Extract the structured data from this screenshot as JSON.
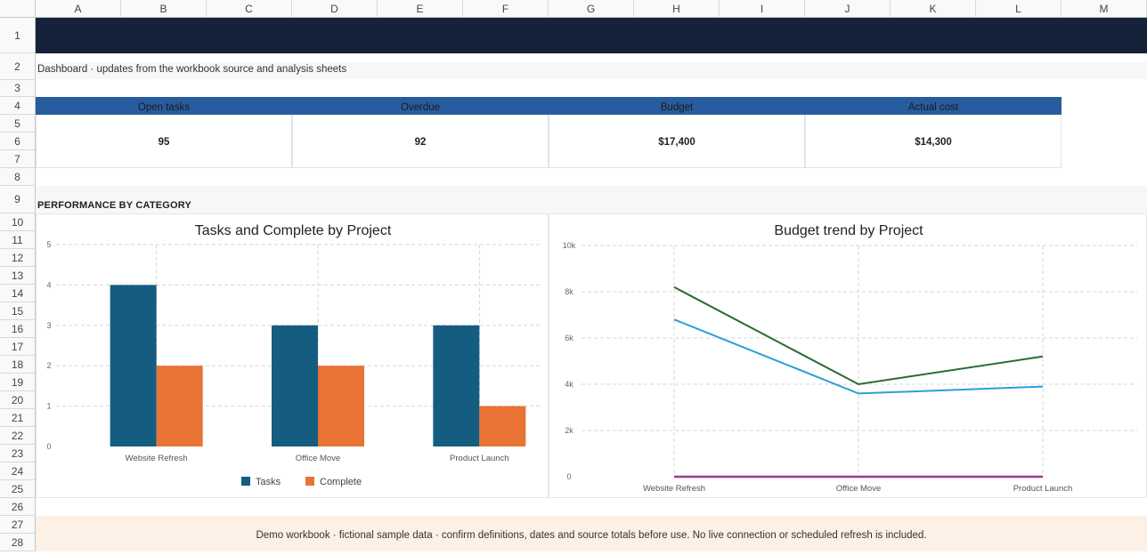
{
  "columns": [
    "A",
    "B",
    "C",
    "D",
    "E",
    "F",
    "G",
    "H",
    "I",
    "J",
    "K",
    "L",
    "M"
  ],
  "rows": [
    "1",
    "2",
    "3",
    "4",
    "5",
    "6",
    "7",
    "8",
    "9",
    "10",
    "11",
    "12",
    "13",
    "14",
    "15",
    "16",
    "17",
    "18",
    "19",
    "20",
    "21",
    "22",
    "23",
    "24",
    "25",
    "26",
    "27",
    "28"
  ],
  "sheet": {
    "title": "",
    "subtitle": "Dashboard · updates from the workbook source and analysis sheets",
    "section_title": "PERFORMANCE BY CATEGORY",
    "footer": "Demo workbook · fictional sample data · confirm definitions, dates and source totals before use. No live connection or scheduled refresh is included."
  },
  "kpis": [
    {
      "label": "Open tasks",
      "value": "95"
    },
    {
      "label": "Overdue",
      "value": "92"
    },
    {
      "label": "Budget",
      "value": "$17,400"
    },
    {
      "label": "Actual cost",
      "value": "$14,300"
    }
  ],
  "colors": {
    "title_band": "#16213a",
    "kpi_header": "#275c9e",
    "tasks": "#145d80",
    "complete": "#e87335",
    "line_green": "#2a6b35",
    "line_blue": "#2aa0d6",
    "line_purple": "#9b3a8e",
    "footer_band": "#fdf0e6"
  },
  "chart_data": [
    {
      "type": "bar",
      "title": "Tasks and Complete by Project",
      "categories": [
        "Website Refresh",
        "Office Move",
        "Product Launch"
      ],
      "series": [
        {
          "name": "Tasks",
          "values": [
            4,
            3,
            3
          ]
        },
        {
          "name": "Complete",
          "values": [
            2,
            2,
            1
          ]
        }
      ],
      "ylim": [
        0,
        5
      ],
      "yticks": [
        "0",
        "1",
        "2",
        "3",
        "4",
        "5"
      ],
      "grid": true,
      "legend": "bottom"
    },
    {
      "type": "line",
      "title": "Budget trend by Project",
      "categories": [
        "Website Refresh",
        "Office Move",
        "Product Launch"
      ],
      "series": [
        {
          "values": [
            8200,
            4000,
            5200
          ]
        },
        {
          "values": [
            6800,
            3600,
            3900
          ]
        },
        {
          "values": [
            0,
            0,
            0
          ]
        }
      ],
      "ylim": [
        0,
        10000
      ],
      "yticks": [
        "0",
        "2k",
        "4k",
        "6k",
        "8k",
        "10k"
      ],
      "grid": true
    }
  ]
}
